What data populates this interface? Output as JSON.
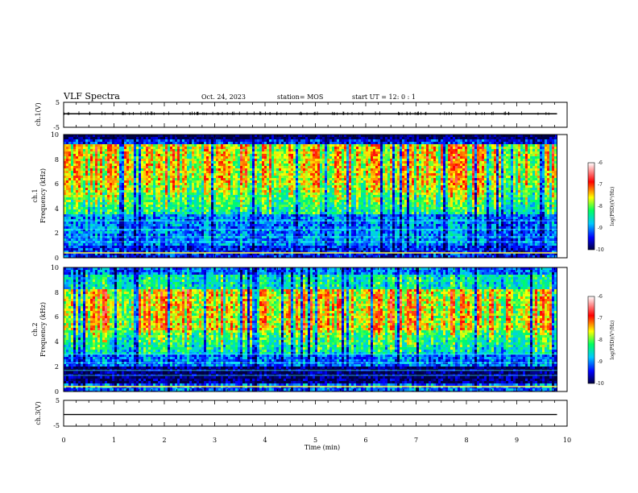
{
  "header": {
    "title": "VLF Spectra",
    "date": "Oct. 24, 2023",
    "station": "station= MOS",
    "start": "start  UT =   12: 0  : 1"
  },
  "chart_data": [
    {
      "type": "line",
      "name": "ch1-waveform",
      "ylabel": "ch.1(V)",
      "ylim": [
        -5,
        5
      ],
      "yticks": [
        "5",
        "-5"
      ],
      "xlim": [
        0,
        10
      ],
      "series": [
        {
          "x": [
            0,
            9.8
          ],
          "values": [
            0.4,
            0.4
          ]
        }
      ]
    },
    {
      "type": "heatmap",
      "name": "ch1-spectrogram",
      "ylabel_top": "ch.1",
      "ylabel": "Frequency (kHz)",
      "ylim": [
        0,
        10
      ],
      "yticks": [
        "0",
        "2",
        "4",
        "6",
        "8",
        "10"
      ],
      "xlim": [
        0,
        10
      ],
      "data_x_max": 9.8,
      "colorbar": {
        "label": "log(PSD)(V²/Hz)",
        "range": [
          -10,
          -6
        ],
        "ticks": [
          "-6",
          "-7",
          "-8",
          "-9",
          "-10"
        ]
      },
      "dominant_band_khz": [
        6,
        9
      ]
    },
    {
      "type": "heatmap",
      "name": "ch2-spectrogram",
      "ylabel_top": "ch.2",
      "ylabel": "Frequency (kHz)",
      "ylim": [
        0,
        10
      ],
      "yticks": [
        "0",
        "2",
        "4",
        "6",
        "8",
        "10"
      ],
      "xlim": [
        0,
        10
      ],
      "data_x_max": 9.8,
      "colorbar": {
        "label": "log(PSD)(V²/Hz)",
        "range": [
          -10,
          -6
        ],
        "ticks": [
          "-6",
          "-7",
          "-8",
          "-9",
          "-10"
        ]
      },
      "dominant_band_khz": [
        5,
        8
      ]
    },
    {
      "type": "line",
      "name": "ch3-waveform",
      "ylabel": "ch.3(V)",
      "ylim": [
        -5,
        5
      ],
      "yticks": [
        "5",
        "-5"
      ],
      "xlim": [
        0,
        10
      ],
      "series": [
        {
          "x": [
            0,
            9.8
          ],
          "values": [
            -0.5,
            -0.5
          ]
        }
      ]
    }
  ],
  "xaxis": {
    "label": "Time  (min)",
    "ticks": [
      "0",
      "1",
      "2",
      "3",
      "4",
      "5",
      "6",
      "7",
      "8",
      "9",
      "10"
    ]
  }
}
